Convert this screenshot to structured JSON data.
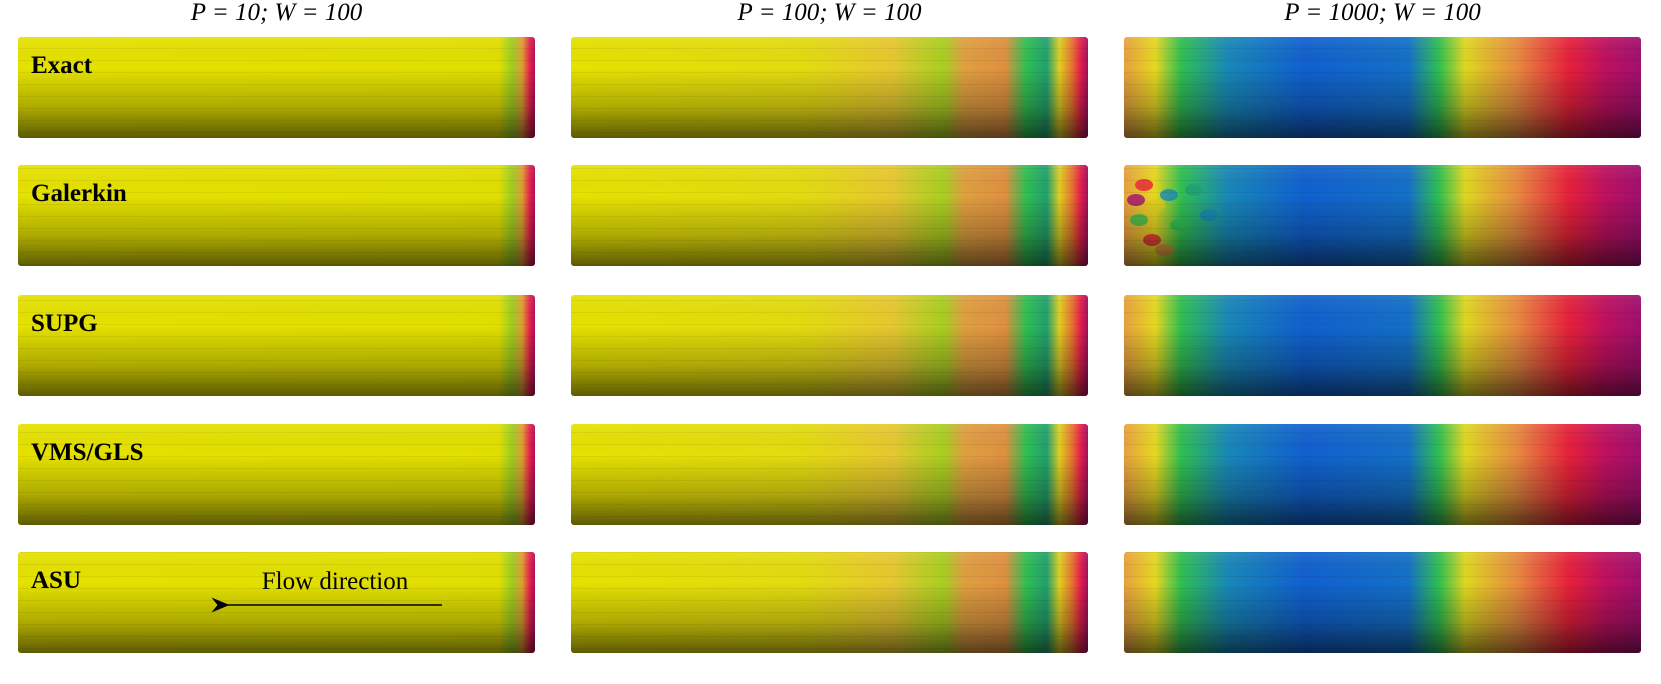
{
  "columns": [
    {
      "title": "P = 10; W = 100"
    },
    {
      "title": "P = 100; W = 100"
    },
    {
      "title": "P = 1000; W = 100"
    }
  ],
  "rows": [
    {
      "label": "Exact"
    },
    {
      "label": "Galerkin"
    },
    {
      "label": "SUPG"
    },
    {
      "label": "VMS/GLS"
    },
    {
      "label": "ASU"
    }
  ],
  "annotation": "Flow direction"
}
